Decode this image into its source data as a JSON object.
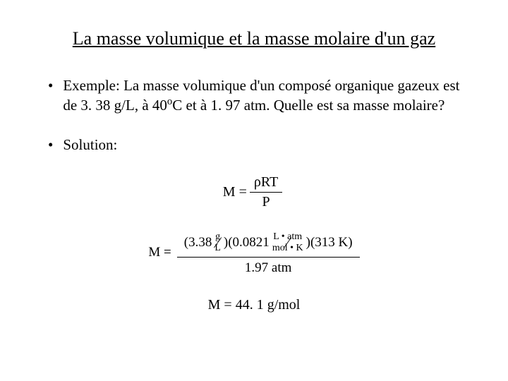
{
  "title": "La masse volumique et la masse molaire d'un gaz",
  "example": {
    "label": "Exemple:",
    "text": "La masse volumique d'un composé organique gazeux est de 3. 38 g/L, à 40",
    "superscript": "o",
    "text2": "C et à 1. 97 atm.  Quelle est sa masse molaire?"
  },
  "solution_label": "Solution:",
  "formula1": {
    "lhs": "M =",
    "numerator": "ρRT",
    "denominator": "P"
  },
  "formula2": {
    "lhs": "M =",
    "density_value": "(3.38",
    "density_unit_num": "g",
    "density_unit_den": "L",
    "density_close": ")",
    "r_value": "(0.0821",
    "r_unit_num": "L • atm",
    "r_unit_den": "mol • K",
    "r_close": ")",
    "temp": "(313 K)",
    "denominator": "1.97 atm"
  },
  "formula3": {
    "text": "M = 44. 1 g/mol"
  },
  "colors": {
    "background": "#ffffff",
    "text": "#000000"
  }
}
